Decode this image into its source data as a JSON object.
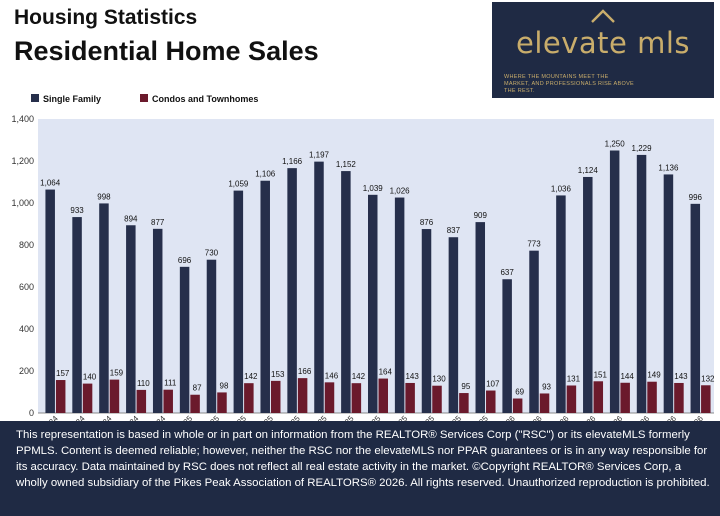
{
  "header": {
    "title_line1": "Housing Statistics",
    "title_line2": "Residential Home Sales"
  },
  "logo": {
    "name": "elevate mls",
    "tagline": "WHERE THE MOUNTAINS MEET THE MARKET, AND PROFESSIONALS RISE ABOVE THE REST."
  },
  "colors": {
    "single_family": "#262f4b",
    "condos": "#6b1a2c",
    "plot_bg": "#dfe5f3",
    "footer_bg": "#1f2a44"
  },
  "chart_data": {
    "type": "bar",
    "categories": [
      "Aug-24",
      "Sep-24",
      "Oct-24",
      "Nov-24",
      "Dec-24",
      "Jan-25",
      "Feb-25",
      "Mar-25",
      "Apr-25",
      "May-25",
      "Jun-25",
      "Jul-25",
      "Aug-25",
      "Sep-25",
      "Oct-25",
      "Nov-25",
      "Dec-25",
      "Jan-26",
      "Feb-26",
      "Mar-26",
      "Apr-26",
      "May-26",
      "Jun-26",
      "Jul-26",
      "Aug-26"
    ],
    "series": [
      {
        "name": "Single Family",
        "values": [
          1064,
          933,
          998,
          894,
          877,
          696,
          730,
          1059,
          1106,
          1166,
          1197,
          1152,
          1039,
          1026,
          876,
          837,
          909,
          637,
          773,
          1036,
          1124,
          1250,
          1229,
          1136,
          996
        ]
      },
      {
        "name": "Condos and Townhomes",
        "values": [
          157,
          140,
          159,
          110,
          111,
          87,
          98,
          142,
          153,
          166,
          146,
          142,
          164,
          143,
          130,
          95,
          107,
          69,
          93,
          131,
          151,
          144,
          149,
          143,
          132
        ]
      }
    ],
    "value_labels_single": [
      "1,064",
      "933",
      "998",
      "894",
      "877",
      "696",
      "730",
      "1,059",
      "1,106",
      "1,166",
      "1,197",
      "1,152",
      "1,039",
      "1,026",
      "876",
      "837",
      "909",
      "637",
      "773",
      "1,036",
      "1,124",
      "1,250",
      "1,229",
      "1,136",
      "996"
    ],
    "value_labels_condo": [
      "157",
      "140",
      "159",
      "110",
      "111",
      "87",
      "98",
      "142",
      "153",
      "166",
      "146",
      "142",
      "164",
      "143",
      "130",
      "95",
      "107",
      "69",
      "93",
      "131",
      "151",
      "144",
      "149",
      "143",
      "132"
    ],
    "y_ticks": [
      "0",
      "200",
      "400",
      "600",
      "800",
      "1,000",
      "1,200",
      "1,400"
    ],
    "ylim": [
      0,
      1400
    ],
    "legend_position": "top-left",
    "grid": false
  },
  "footer": {
    "disclaimer": "This representation is based in whole or in part on information from the REALTOR® Services Corp (\"RSC\") or its elevateMLS formerly PPMLS. Content is deemed reliable; however, neither the RSC nor the elevateMLS nor PPAR guarantees or is in any way responsible for its accuracy. Data maintained by RSC does not reflect all real estate activity in the market.  ©Copyright REALTOR® Services Corp, a wholly owned subsidiary of the Pikes Peak Association of REALTORS®  2026. All rights reserved. Unauthorized reproduction is prohibited."
  }
}
